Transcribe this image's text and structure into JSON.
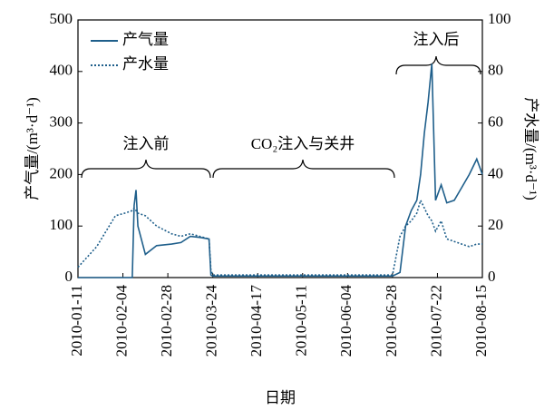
{
  "chart_data": {
    "type": "line",
    "x_label": "日期",
    "y_label": "产气量/(m³·d⁻¹)",
    "y2_label": "产水量/(m³·d⁻¹)",
    "annotations": [
      "注入前",
      "CO₂注入与关井",
      "注入后"
    ],
    "legend": "upper left",
    "xlim": [
      "2010-01-11",
      "2010-08-15"
    ],
    "xticks": [
      "2010-01-11",
      "2010-02-04",
      "2010-02-28",
      "2010-03-24",
      "2010-04-17",
      "2010-05-11",
      "2010-06-04",
      "2010-06-28",
      "2010-07-22",
      "2010-08-15"
    ],
    "ylim": [
      0,
      500
    ],
    "yticks": [
      0,
      100,
      200,
      300,
      400,
      500
    ],
    "y2lim": [
      0,
      100
    ],
    "y2ticks": [
      0,
      20,
      40,
      60,
      80,
      100
    ],
    "x": [
      "2010-01-11",
      "2010-01-16",
      "2010-01-21",
      "2010-01-26",
      "2010-01-31",
      "2010-02-05",
      "2010-02-09",
      "2010-02-10",
      "2010-02-11",
      "2010-02-12",
      "2010-02-16",
      "2010-02-22",
      "2010-03-02",
      "2010-03-07",
      "2010-03-12",
      "2010-03-17",
      "2010-03-22",
      "2010-03-23",
      "2010-03-24",
      "2010-04-11",
      "2010-05-11",
      "2010-06-10",
      "2010-06-28",
      "2010-07-02",
      "2010-07-05",
      "2010-07-08",
      "2010-07-11",
      "2010-07-13",
      "2010-07-15",
      "2010-07-17",
      "2010-07-19",
      "2010-07-21",
      "2010-07-24",
      "2010-07-27",
      "2010-07-31",
      "2010-08-04",
      "2010-08-08",
      "2010-08-12",
      "2010-08-15"
    ],
    "series": [
      {
        "name": "产气量",
        "color": "#1f5f8b",
        "style": "solid",
        "values": [
          0,
          0,
          0,
          0,
          0,
          0,
          0,
          140,
          170,
          100,
          45,
          62,
          65,
          68,
          80,
          78,
          75,
          5,
          3,
          3,
          3,
          3,
          3,
          10,
          100,
          130,
          150,
          200,
          280,
          340,
          415,
          150,
          180,
          145,
          150,
          175,
          200,
          230,
          200
        ]
      },
      {
        "name": "产水量",
        "color": "#1f5f8b",
        "style": "dotted",
        "axis": "y2",
        "values": [
          4,
          8,
          12,
          18,
          24,
          25,
          26,
          27,
          26,
          25,
          24,
          20,
          17,
          16,
          17,
          16,
          15,
          3,
          1,
          1,
          1,
          1,
          1,
          16,
          20,
          22,
          25,
          30,
          27,
          24,
          22,
          18,
          22,
          15,
          14,
          13,
          12,
          13,
          13
        ]
      }
    ]
  }
}
